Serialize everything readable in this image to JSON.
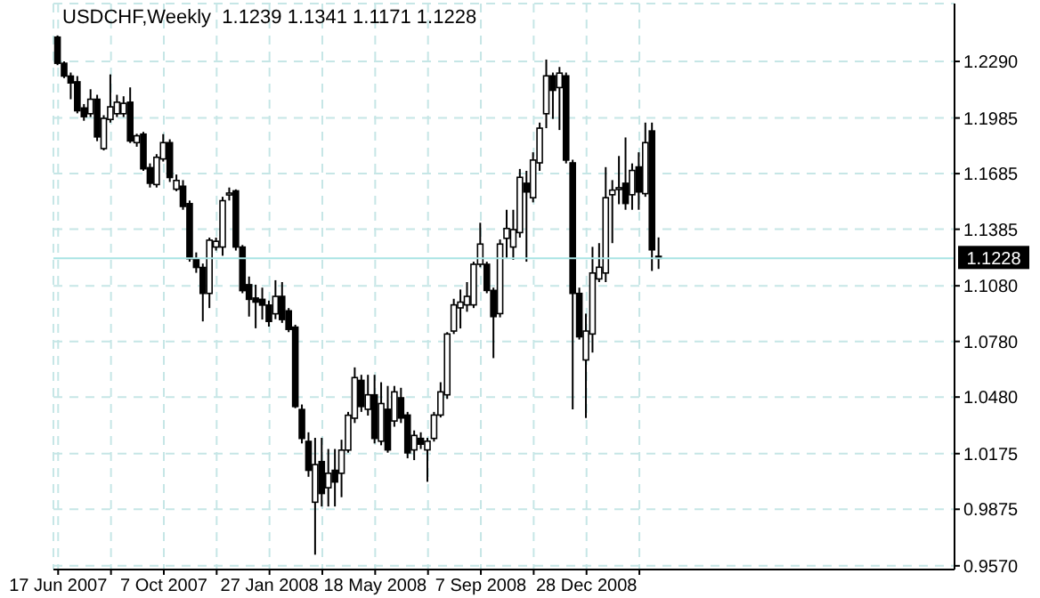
{
  "chart_data": {
    "type": "candlestick",
    "title": "USDCHF,Weekly  1.1239 1.1341 1.1171 1.1228",
    "color": "#000000",
    "grid": true,
    "x": [
      "2007-06-17",
      "2007-06-24",
      "2007-07-01",
      "2007-07-08",
      "2007-07-15",
      "2007-07-22",
      "2007-07-29",
      "2007-08-05",
      "2007-08-12",
      "2007-08-19",
      "2007-08-26",
      "2007-09-02",
      "2007-09-09",
      "2007-09-16",
      "2007-09-23",
      "2007-09-30",
      "2007-10-07",
      "2007-10-14",
      "2007-10-21",
      "2007-10-28",
      "2007-11-04",
      "2007-11-11",
      "2007-11-18",
      "2007-11-25",
      "2007-12-02",
      "2007-12-09",
      "2007-12-16",
      "2007-12-23",
      "2007-12-30",
      "2008-01-06",
      "2008-01-13",
      "2008-01-20",
      "2008-01-27",
      "2008-02-03",
      "2008-02-10",
      "2008-02-17",
      "2008-02-24",
      "2008-03-02",
      "2008-03-09",
      "2008-03-16",
      "2008-03-23",
      "2008-03-30",
      "2008-04-06",
      "2008-04-13",
      "2008-04-20",
      "2008-04-27",
      "2008-05-04",
      "2008-05-11",
      "2008-05-18",
      "2008-05-25",
      "2008-06-01",
      "2008-06-08",
      "2008-06-15",
      "2008-06-22",
      "2008-06-29",
      "2008-07-06",
      "2008-07-13",
      "2008-07-20",
      "2008-07-27",
      "2008-08-03",
      "2008-08-10",
      "2008-08-17",
      "2008-08-24",
      "2008-08-31",
      "2008-09-07",
      "2008-09-14",
      "2008-09-21",
      "2008-09-28",
      "2008-10-05",
      "2008-10-12",
      "2008-10-19",
      "2008-10-26",
      "2008-11-02",
      "2008-11-09",
      "2008-11-16",
      "2008-11-23",
      "2008-11-30",
      "2008-12-07",
      "2008-12-14",
      "2008-12-21",
      "2008-12-28",
      "2009-01-04",
      "2009-01-11",
      "2009-01-18",
      "2009-01-25",
      "2009-02-01",
      "2009-02-08",
      "2009-02-15",
      "2009-02-22",
      "2009-03-01",
      "2009-03-08",
      "2009-03-15"
    ],
    "ohlc": [
      [
        1.2421,
        1.243,
        1.227,
        1.228
      ],
      [
        1.228,
        1.229,
        1.22,
        1.2211
      ],
      [
        1.2211,
        1.223,
        1.2086,
        1.2174
      ],
      [
        1.218,
        1.2211,
        1.201,
        1.2024
      ],
      [
        1.2039,
        1.206,
        1.197,
        1.1992
      ],
      [
        1.2008,
        1.214,
        1.199,
        1.2086
      ],
      [
        1.2086,
        1.211,
        1.186,
        1.1883
      ],
      [
        1.182,
        1.2,
        1.181,
        1.1983
      ],
      [
        1.1977,
        1.222,
        1.196,
        1.2045
      ],
      [
        1.2008,
        1.211,
        1.199,
        1.207
      ],
      [
        1.2008,
        1.2102,
        1.199,
        1.2064
      ],
      [
        1.207,
        1.215,
        1.185,
        1.1861
      ],
      [
        1.1852,
        1.19,
        1.183,
        1.1889
      ],
      [
        1.1898,
        1.191,
        1.17,
        1.1711
      ],
      [
        1.1717,
        1.174,
        1.161,
        1.1633
      ],
      [
        1.1626,
        1.179,
        1.161,
        1.1773
      ],
      [
        1.1764,
        1.1898,
        1.175,
        1.1852
      ],
      [
        1.1852,
        1.187,
        1.164,
        1.1664
      ],
      [
        1.1601,
        1.168,
        1.159,
        1.1648
      ],
      [
        1.1617,
        1.165,
        1.149,
        1.1508
      ],
      [
        1.1523,
        1.154,
        1.121,
        1.1226
      ],
      [
        1.1226,
        1.126,
        1.115,
        1.1179
      ],
      [
        1.1179,
        1.12,
        1.0888,
        1.1039
      ],
      [
        1.1039,
        1.134,
        1.096,
        1.1326
      ],
      [
        1.1289,
        1.134,
        1.127,
        1.132
      ],
      [
        1.1289,
        1.156,
        1.1242,
        1.1539
      ],
      [
        1.157,
        1.161,
        1.154,
        1.158
      ],
      [
        1.1592,
        1.16,
        1.127,
        1.1289
      ],
      [
        1.1289,
        1.13,
        1.104,
        1.1054
      ],
      [
        1.1086,
        1.113,
        1.0914,
        1.1007
      ],
      [
        1.1014,
        1.1086,
        1.0851,
        1.0992
      ],
      [
        1.1007,
        1.107,
        1.0898,
        1.0976
      ],
      [
        1.0976,
        1.1,
        1.086,
        1.0888
      ],
      [
        1.0929,
        1.111,
        1.09,
        1.1023
      ],
      [
        1.1023,
        1.11,
        1.088,
        1.0898
      ],
      [
        1.0945,
        1.096,
        1.083,
        1.0845
      ],
      [
        1.0857,
        1.087,
        1.042,
        1.0429
      ],
      [
        1.0413,
        1.044,
        1.023,
        1.0257
      ],
      [
        1.0241,
        1.029,
        1.005,
        1.0085
      ],
      [
        0.9913,
        1.026,
        0.963,
        1.0116
      ],
      [
        1.0132,
        1.026,
        0.989,
        0.996
      ],
      [
        0.9991,
        1.02,
        0.989,
        1.0069
      ],
      [
        1.0085,
        1.02,
        0.989,
        1.0022
      ],
      [
        1.0069,
        1.025,
        0.994,
        1.0194
      ],
      [
        1.0194,
        1.04,
        1.018,
        1.0382
      ],
      [
        1.0366,
        1.064,
        1.034,
        1.0585
      ],
      [
        1.057,
        1.06,
        1.04,
        1.0429
      ],
      [
        1.0414,
        1.06,
        1.038,
        1.0492
      ],
      [
        1.0492,
        1.06,
        1.023,
        1.0257
      ],
      [
        1.0242,
        1.056,
        1.022,
        1.0445
      ],
      [
        1.0414,
        1.054,
        1.018,
        1.0195
      ],
      [
        1.0351,
        1.054,
        1.032,
        1.0508
      ],
      [
        1.0476,
        1.053,
        1.034,
        1.0367
      ],
      [
        1.0383,
        1.04,
        1.015,
        1.0179
      ],
      [
        1.0195,
        1.03,
        1.014,
        1.0273
      ],
      [
        1.0257,
        1.029,
        1.02,
        1.0226
      ],
      [
        1.0195,
        1.026,
        1.0023,
        1.0242
      ],
      [
        1.0257,
        1.04,
        1.024,
        1.0383
      ],
      [
        1.0383,
        1.056,
        1.037,
        1.0508
      ],
      [
        1.0492,
        1.083,
        1.047,
        1.082
      ],
      [
        1.0836,
        1.101,
        1.082,
        1.0977
      ],
      [
        1.0961,
        1.106,
        1.085,
        1.0992
      ],
      [
        1.0977,
        1.11,
        1.094,
        1.1023
      ],
      [
        1.0977,
        1.121,
        1.096,
        1.1196
      ],
      [
        1.1196,
        1.142,
        1.118,
        1.1305
      ],
      [
        1.1196,
        1.121,
        1.104,
        1.1055
      ],
      [
        1.1055,
        1.107,
        1.069,
        1.0914
      ],
      [
        1.093,
        1.133,
        1.091,
        1.1305
      ],
      [
        1.1336,
        1.149,
        1.123,
        1.1389
      ],
      [
        1.1289,
        1.149,
        1.122,
        1.1383
      ],
      [
        1.1367,
        1.171,
        1.134,
        1.1665
      ],
      [
        1.1633,
        1.17,
        1.121,
        1.1586
      ],
      [
        1.1555,
        1.18,
        1.153,
        1.1758
      ],
      [
        1.1743,
        1.196,
        1.17,
        1.193
      ],
      [
        1.2008,
        1.23,
        1.193,
        1.2212
      ],
      [
        1.2212,
        1.223,
        1.198,
        1.2134
      ],
      [
        1.2149,
        1.226,
        1.192,
        1.2227
      ],
      [
        1.2212,
        1.223,
        1.174,
        1.1758
      ],
      [
        1.1743,
        1.176,
        1.0414,
        1.1039
      ],
      [
        1.1039,
        1.107,
        1.079,
        1.0805
      ],
      [
        1.068,
        1.093,
        1.0367,
        1.0836
      ],
      [
        1.082,
        1.129,
        1.072,
        1.1149
      ],
      [
        1.1117,
        1.131,
        1.11,
        1.118
      ],
      [
        1.1149,
        1.172,
        1.11,
        1.1555
      ],
      [
        1.1571,
        1.165,
        1.131,
        1.1596
      ],
      [
        1.1605,
        1.178,
        1.152,
        1.1609
      ],
      [
        1.1633,
        1.188,
        1.149,
        1.1524
      ],
      [
        1.1571,
        1.174,
        1.149,
        1.1702
      ],
      [
        1.1721,
        1.18,
        1.149,
        1.1586
      ],
      [
        1.1577,
        1.196,
        1.156,
        1.1852
      ],
      [
        1.1915,
        1.196,
        1.116,
        1.1274
      ],
      [
        1.1239,
        1.1341,
        1.1171,
        1.1228
      ]
    ],
    "xlim": [
      "2007-06-12",
      "2010-01-22"
    ],
    "xticks": [
      {
        "value": "2007-06-17",
        "label": "17 Jun 2007"
      },
      {
        "value": "2007-08-12",
        "label": null
      },
      {
        "value": "2007-10-07",
        "label": "7 Oct 2007"
      },
      {
        "value": "2007-12-02",
        "label": null
      },
      {
        "value": "2008-01-27",
        "label": "27 Jan 2008"
      },
      {
        "value": "2008-03-23",
        "label": null
      },
      {
        "value": "2008-05-18",
        "label": "18 May 2008"
      },
      {
        "value": "2008-07-13",
        "label": null
      },
      {
        "value": "2008-09-07",
        "label": "7 Sep 2008"
      },
      {
        "value": "2008-11-02",
        "label": null
      },
      {
        "value": "2008-12-28",
        "label": "28 Dec 2008"
      },
      {
        "value": "2009-02-22",
        "label": null
      }
    ],
    "ylim": [
      0.955,
      1.2602
    ],
    "yticks": [
      {
        "value": 0.957,
        "label": "0.9570"
      },
      0.9875,
      1.0175,
      {
        "value": 1.048,
        "label": "1.0480"
      },
      {
        "value": 1.078,
        "label": "1.0780"
      },
      {
        "value": 1.108,
        "label": "1.1080"
      },
      1.1385,
      1.1685,
      1.1985,
      {
        "value": 1.229,
        "label": "1.2290"
      }
    ],
    "ref_lines": [
      {
        "axis": "y",
        "value": 1.1228,
        "label": "1.1228",
        "color": "#a8e4e4"
      }
    ]
  }
}
